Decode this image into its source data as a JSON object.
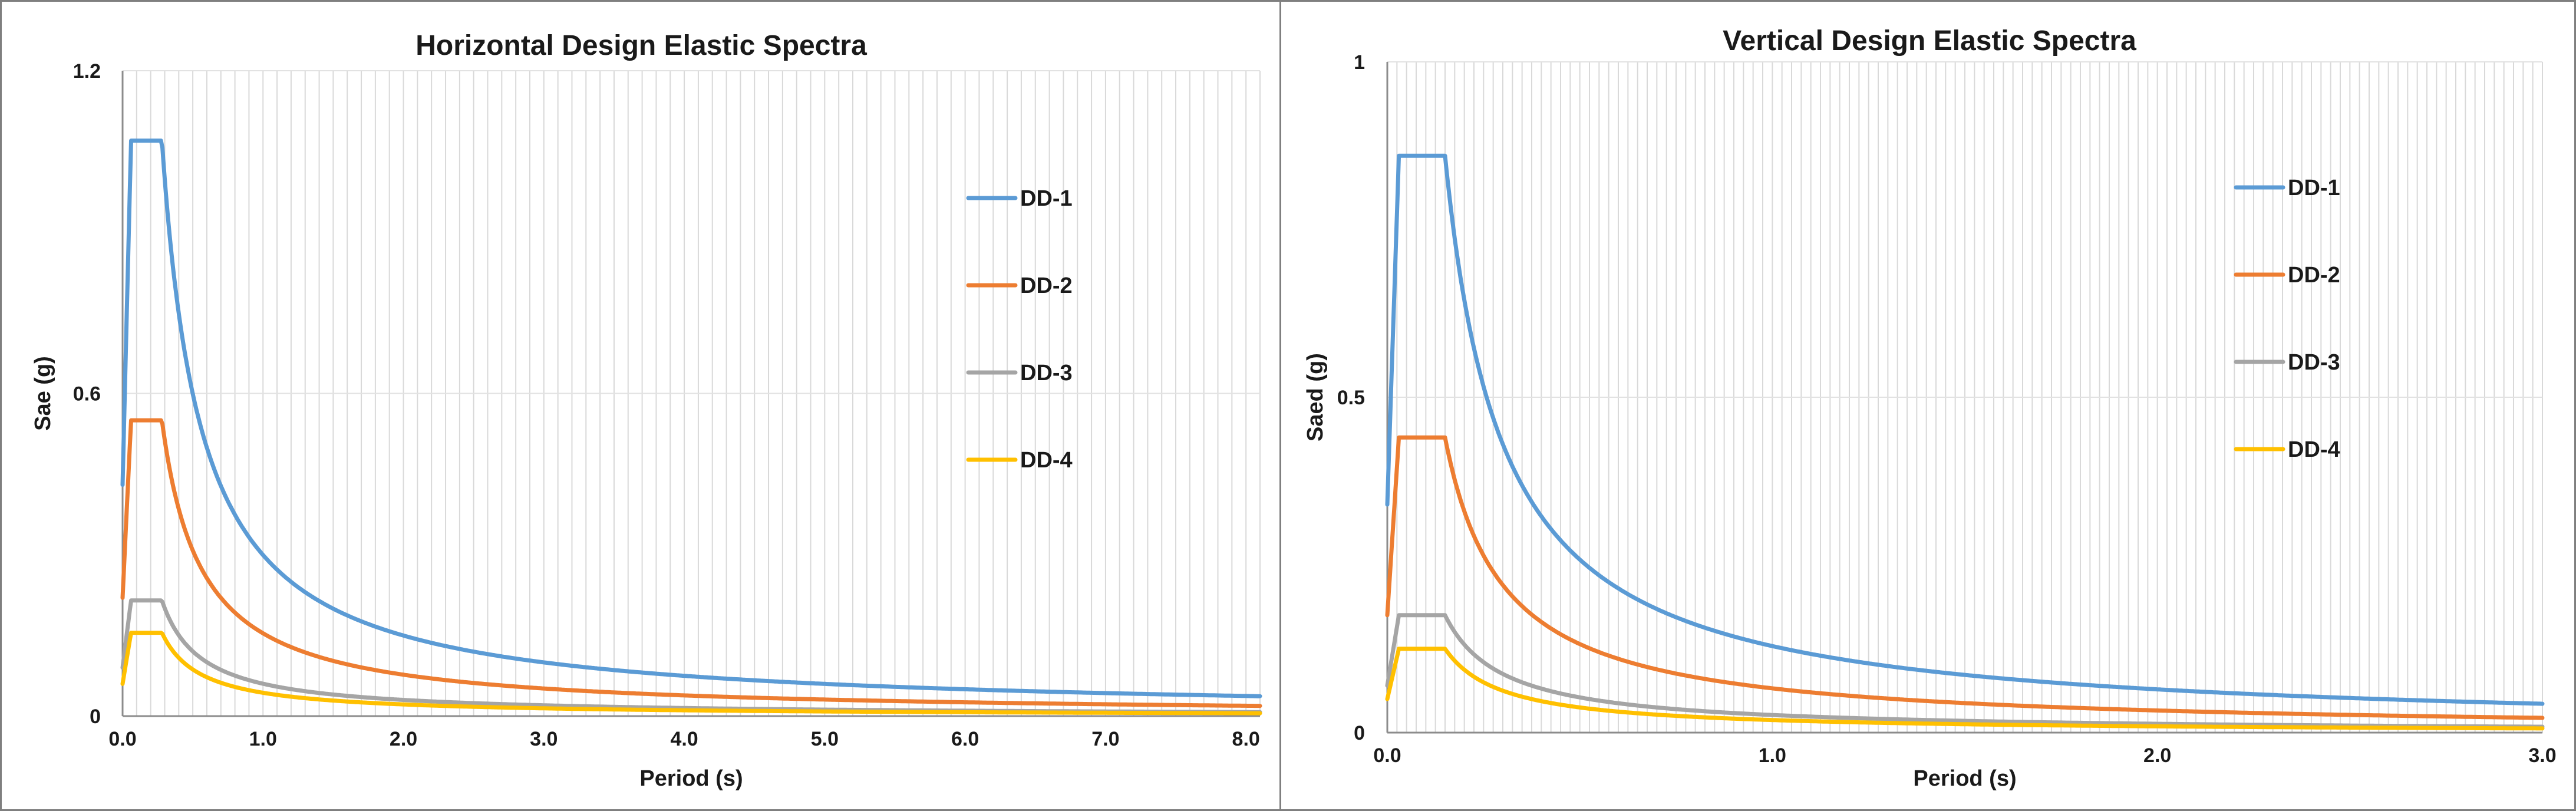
{
  "chart_data": [
    {
      "type": "line",
      "title": "Horizontal Design Elastic Spectra",
      "xlabel": "Period (s)",
      "ylabel": "Sae (g)",
      "xlim": [
        0,
        8.1
      ],
      "ylim": [
        0,
        1.2
      ],
      "x_ticks": [
        0,
        1,
        2,
        3,
        4,
        5,
        6,
        7,
        8
      ],
      "x_tick_labels": [
        "0.0",
        "1.0",
        "2.0",
        "3.0",
        "4.0",
        "5.0",
        "6.0",
        "7.0",
        "8.0"
      ],
      "y_ticks": [
        0,
        0.6,
        1.2
      ],
      "y_tick_labels": [
        "0",
        "0.6",
        "1.2"
      ],
      "minor_x_step": 0.1,
      "legend_position": "right",
      "series": [
        {
          "name": "DD-1",
          "color": "#5B9BD5",
          "pga": 0.43,
          "sds": 1.07,
          "ta": 0.06,
          "tb": 0.28
        },
        {
          "name": "DD-2",
          "color": "#ED7D31",
          "pga": 0.22,
          "sds": 0.55,
          "ta": 0.06,
          "tb": 0.28
        },
        {
          "name": "DD-3",
          "color": "#A5A5A5",
          "pga": 0.09,
          "sds": 0.215,
          "ta": 0.06,
          "tb": 0.28
        },
        {
          "name": "DD-4",
          "color": "#FFC000",
          "pga": 0.06,
          "sds": 0.155,
          "ta": 0.06,
          "tb": 0.28
        }
      ]
    },
    {
      "type": "line",
      "title": "Vertical Design Elastic Spectra",
      "xlabel": "Period (s)",
      "ylabel": "Saed (g)",
      "xlim": [
        0,
        3.0
      ],
      "ylim": [
        0,
        1.0
      ],
      "x_ticks": [
        0,
        1,
        2,
        3
      ],
      "x_tick_labels": [
        "0.0",
        "1.0",
        "2.0",
        "3.0"
      ],
      "y_ticks": [
        0,
        0.5,
        1.0
      ],
      "y_tick_labels": [
        "0",
        "0.5",
        "1"
      ],
      "minor_x_step": 0.025,
      "legend_position": "right",
      "series": [
        {
          "name": "DD-1",
          "color": "#5B9BD5",
          "pga": 0.34,
          "sds": 0.86,
          "ta": 0.03,
          "tb": 0.15
        },
        {
          "name": "DD-2",
          "color": "#ED7D31",
          "pga": 0.175,
          "sds": 0.44,
          "ta": 0.03,
          "tb": 0.15
        },
        {
          "name": "DD-3",
          "color": "#A5A5A5",
          "pga": 0.07,
          "sds": 0.175,
          "ta": 0.03,
          "tb": 0.15
        },
        {
          "name": "DD-4",
          "color": "#FFC000",
          "pga": 0.05,
          "sds": 0.125,
          "ta": 0.03,
          "tb": 0.15
        }
      ]
    }
  ]
}
